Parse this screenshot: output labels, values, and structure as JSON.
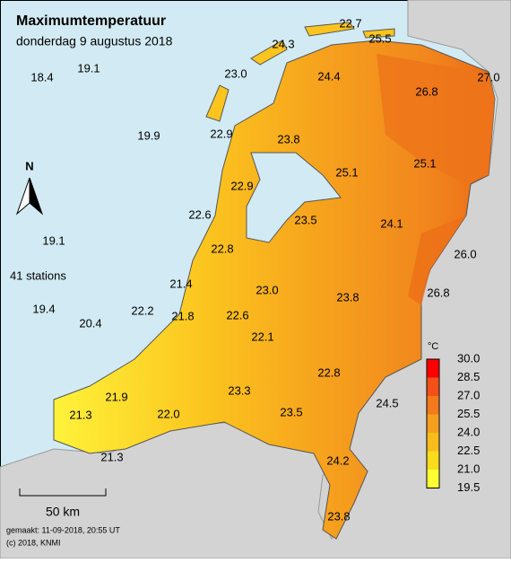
{
  "header": {
    "title": "Maximumtemperatuur",
    "subtitle": "donderdag 9 augustus 2018"
  },
  "stations": [
    "22.7",
    "24.3",
    "25.5",
    "23.0",
    "24.4",
    "26.8",
    "27.0",
    "22.9",
    "23.8",
    "25.1",
    "25.1",
    "22.9",
    "22.6",
    "23.5",
    "24.1",
    "26.0",
    "22.8",
    "21.4",
    "23.0",
    "23.8",
    "26.8",
    "22.2",
    "21.8",
    "22.6",
    "22.1",
    "22.8",
    "21.9",
    "23.3",
    "24.5",
    "21.3",
    "22.0",
    "23.5",
    "21.3",
    "24.2",
    "23.8",
    "18.4",
    "19.1",
    "19.9",
    "19.1",
    "19.4",
    "20.4"
  ],
  "station_count": "41 stations",
  "compass": "N",
  "legend": {
    "unit": "°C",
    "labels": [
      "30.0",
      "28.5",
      "27.0",
      "25.5",
      "24.0",
      "22.5",
      "21.0",
      "19.5"
    ]
  },
  "scale": "50 km",
  "footer": {
    "made": "gemaakt: 11-09-2018, 20:55 UT",
    "copyright": "(c) 2018, KNMI"
  }
}
